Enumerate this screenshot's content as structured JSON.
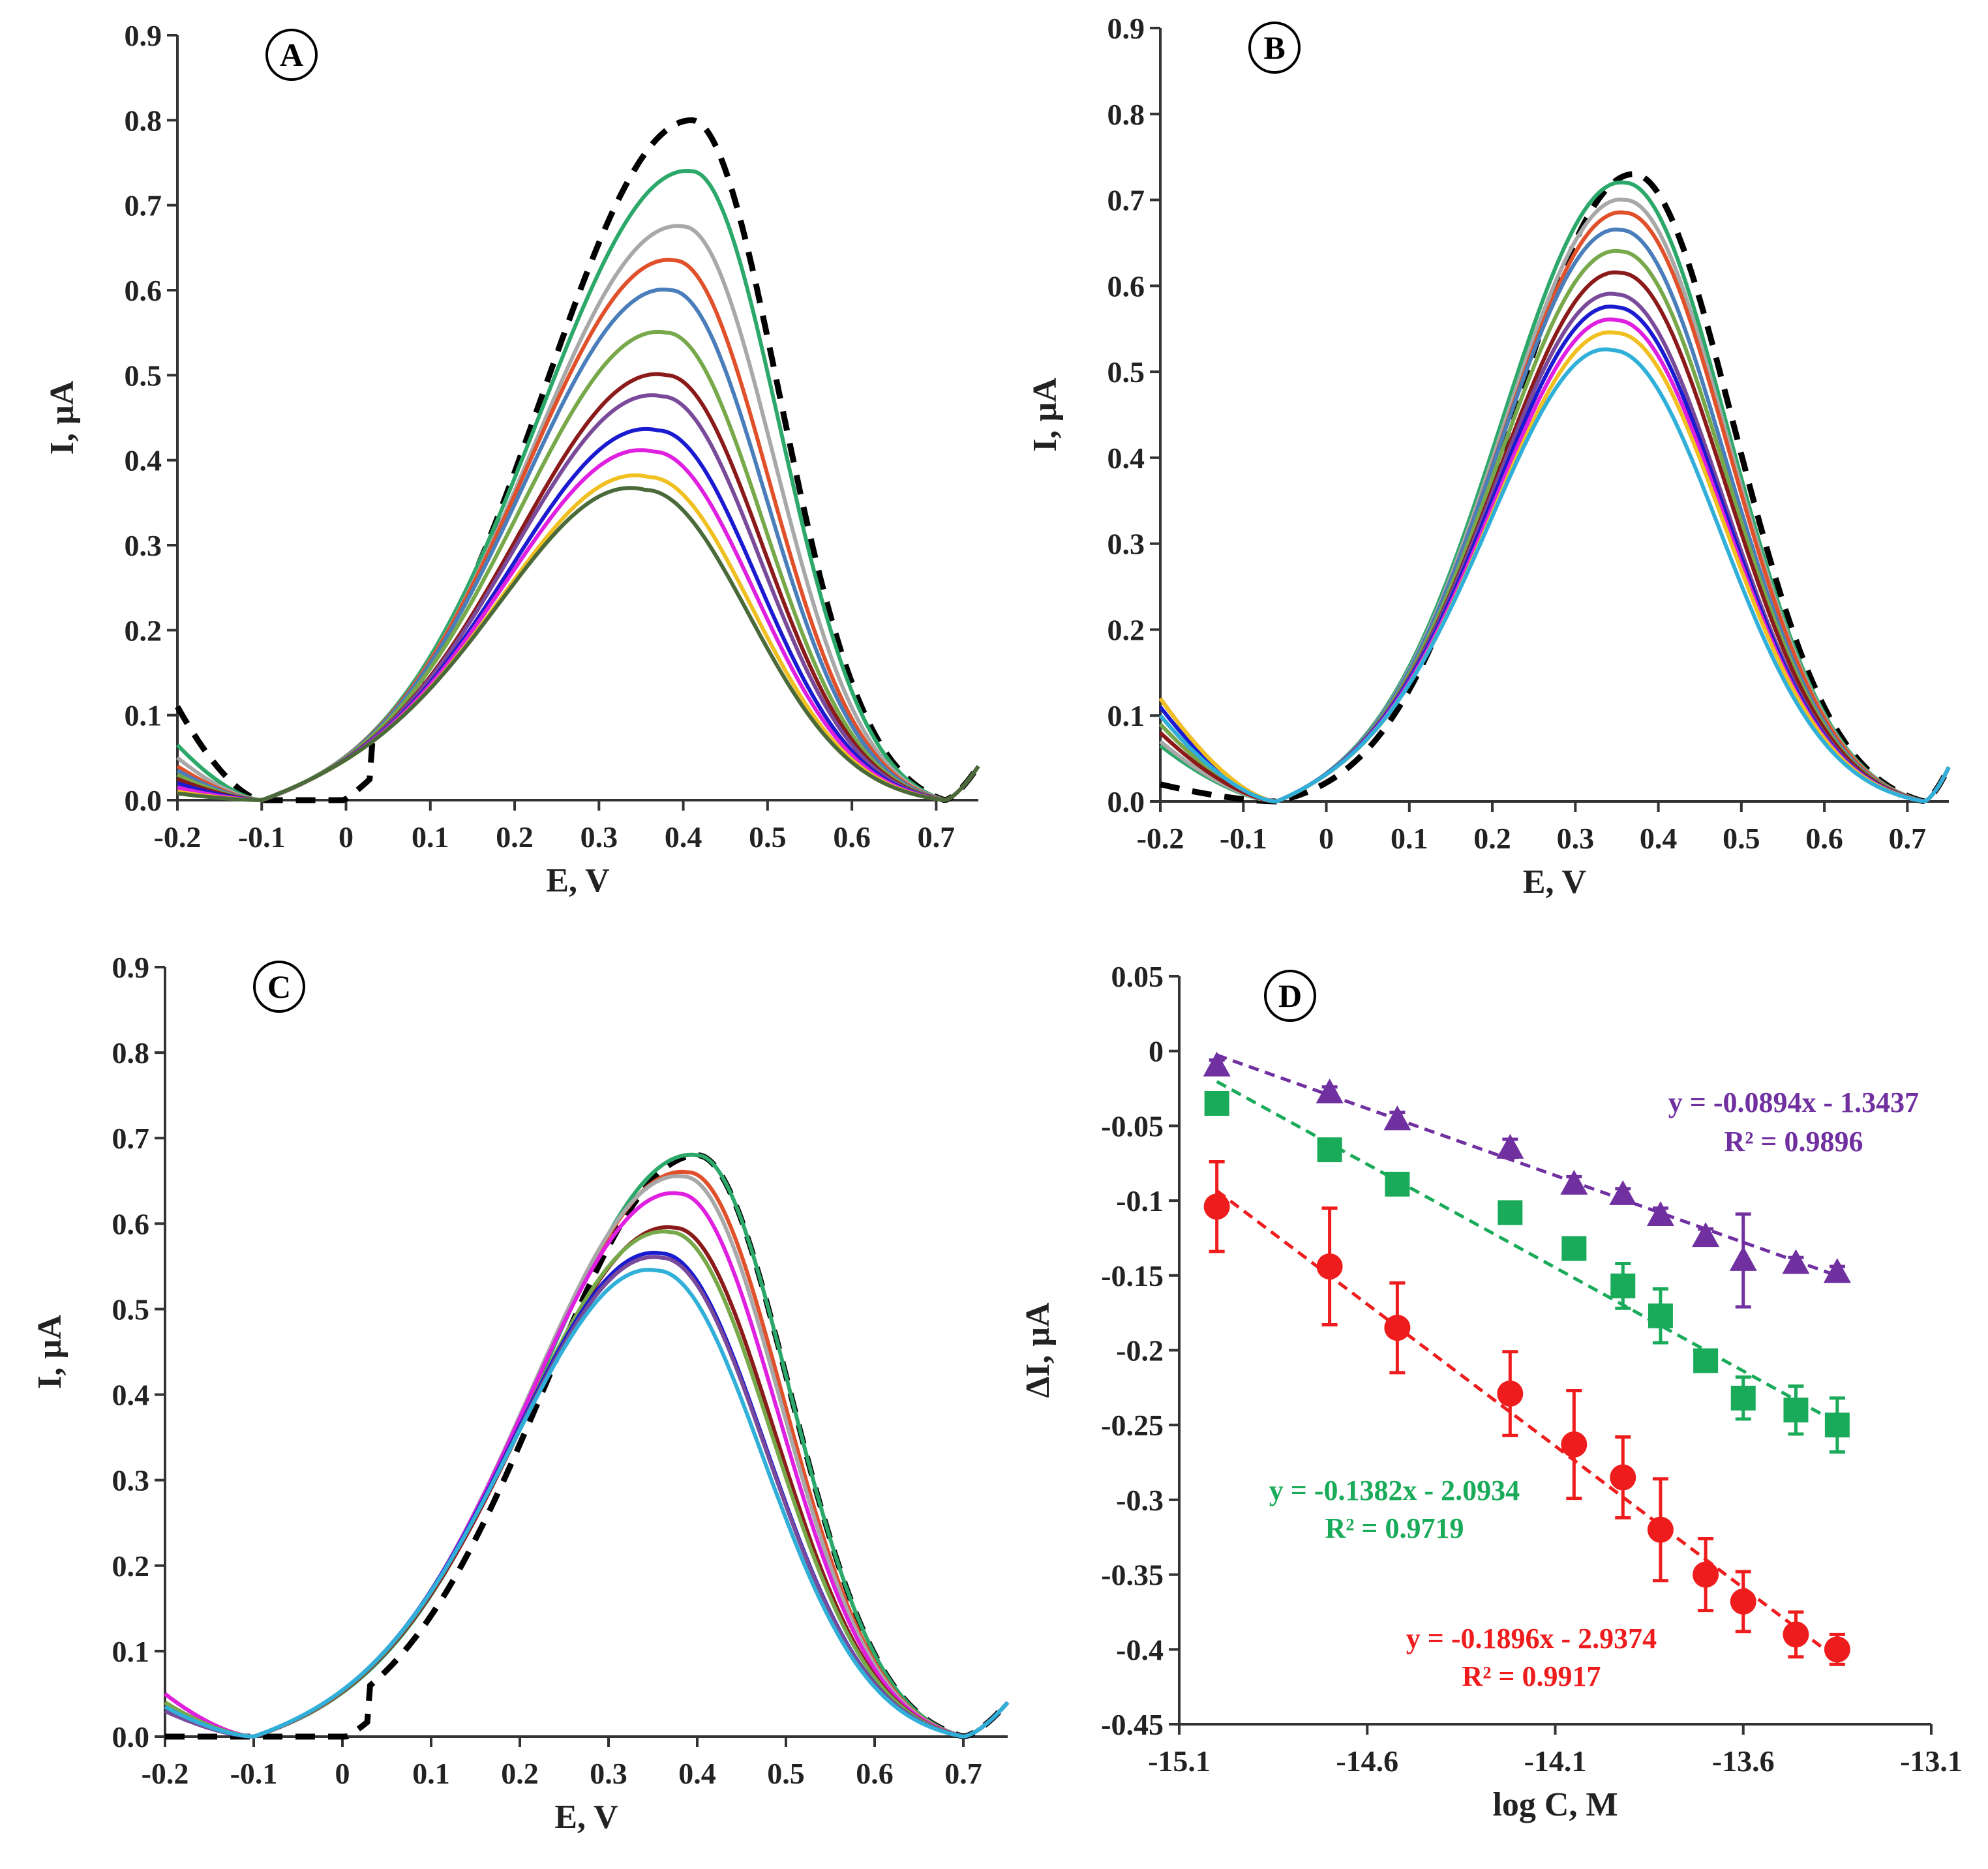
{
  "chart_data": [
    {
      "type": "line",
      "panel": "A",
      "xlabel": "E, V",
      "ylabel": "I, µA",
      "xlim": [
        -0.2,
        0.75
      ],
      "ylim": [
        0,
        0.9
      ],
      "xticks": [
        "-0.2",
        "-0.1",
        "0",
        "0.1",
        "0.2",
        "0.3",
        "0.4",
        "0.5",
        "0.6",
        "0.7"
      ],
      "yticks": [
        "0.0",
        "0.1",
        "0.2",
        "0.3",
        "0.4",
        "0.5",
        "0.6",
        "0.7",
        "0.8",
        "0.9"
      ],
      "zeros": [
        -0.1,
        0.71
      ],
      "series": [
        {
          "color": "#000000",
          "dashed": true,
          "peak_E": 0.41,
          "peak_I": 0.8,
          "left_I": 0.11
        },
        {
          "color": "#2ca86a",
          "peak_E": 0.41,
          "peak_I": 0.74,
          "left_I": 0.065
        },
        {
          "color": "#a8a8a8",
          "peak_E": 0.4,
          "peak_I": 0.675,
          "left_I": 0.05
        },
        {
          "color": "#e0502a",
          "peak_E": 0.39,
          "peak_I": 0.635,
          "left_I": 0.04
        },
        {
          "color": "#4a7ebb",
          "peak_E": 0.385,
          "peak_I": 0.6,
          "left_I": 0.035
        },
        {
          "color": "#77a84a",
          "peak_E": 0.38,
          "peak_I": 0.55,
          "left_I": 0.03
        },
        {
          "color": "#8b1a1a",
          "peak_E": 0.38,
          "peak_I": 0.5,
          "left_I": 0.025
        },
        {
          "color": "#7a4a9a",
          "peak_E": 0.375,
          "peak_I": 0.475,
          "left_I": 0.02
        },
        {
          "color": "#1a1ad0",
          "peak_E": 0.37,
          "peak_I": 0.435,
          "left_I": 0.02
        },
        {
          "color": "#e020e0",
          "peak_E": 0.365,
          "peak_I": 0.41,
          "left_I": 0.015
        },
        {
          "color": "#f0c020",
          "peak_E": 0.36,
          "peak_I": 0.38,
          "left_I": 0.01
        },
        {
          "color": "#4a6a3a",
          "peak_E": 0.355,
          "peak_I": 0.365,
          "left_I": 0.008
        }
      ]
    },
    {
      "type": "line",
      "panel": "B",
      "xlabel": "E, V",
      "ylabel": "I, µA",
      "xlim": [
        -0.2,
        0.75
      ],
      "ylim": [
        0,
        0.9
      ],
      "xticks": [
        "-0.2",
        "-0.1",
        "0",
        "0.1",
        "0.2",
        "0.3",
        "0.4",
        "0.5",
        "0.6",
        "0.7"
      ],
      "yticks": [
        "0.0",
        "0.1",
        "0.2",
        "0.3",
        "0.4",
        "0.5",
        "0.6",
        "0.7",
        "0.8",
        "0.9"
      ],
      "zeros": [
        -0.06,
        0.72
      ],
      "series": [
        {
          "color": "#000000",
          "dashed": true,
          "peak_E": 0.37,
          "peak_I": 0.73,
          "left_I": 0.02
        },
        {
          "color": "#2ca86a",
          "peak_E": 0.36,
          "peak_I": 0.72,
          "left_I": 0.065
        },
        {
          "color": "#a8a8a8",
          "peak_E": 0.36,
          "peak_I": 0.7,
          "left_I": 0.07
        },
        {
          "color": "#e0502a",
          "peak_E": 0.36,
          "peak_I": 0.685,
          "left_I": 0.08
        },
        {
          "color": "#4a7ebb",
          "peak_E": 0.355,
          "peak_I": 0.665,
          "left_I": 0.09
        },
        {
          "color": "#77a84a",
          "peak_E": 0.355,
          "peak_I": 0.64,
          "left_I": 0.09
        },
        {
          "color": "#8b1a1a",
          "peak_E": 0.355,
          "peak_I": 0.615,
          "left_I": 0.08
        },
        {
          "color": "#7a4a9a",
          "peak_E": 0.35,
          "peak_I": 0.59,
          "left_I": 0.1
        },
        {
          "color": "#1a1ad0",
          "peak_E": 0.35,
          "peak_I": 0.575,
          "left_I": 0.11
        },
        {
          "color": "#e020e0",
          "peak_E": 0.35,
          "peak_I": 0.56,
          "left_I": 0.12
        },
        {
          "color": "#f0c020",
          "peak_E": 0.35,
          "peak_I": 0.545,
          "left_I": 0.12
        },
        {
          "color": "#30b0d8",
          "peak_E": 0.345,
          "peak_I": 0.525,
          "left_I": 0.1
        }
      ]
    },
    {
      "type": "line",
      "panel": "C",
      "xlabel": "E, V",
      "ylabel": "I, µA",
      "xlim": [
        -0.2,
        0.75
      ],
      "ylim": [
        0,
        0.9
      ],
      "xticks": [
        "-0.2",
        "-0.1",
        "0",
        "0.1",
        "0.2",
        "0.3",
        "0.4",
        "0.5",
        "0.6",
        "0.7"
      ],
      "yticks": [
        "0.0",
        "0.1",
        "0.2",
        "0.3",
        "0.4",
        "0.5",
        "0.6",
        "0.7",
        "0.8",
        "0.9"
      ],
      "zeros": [
        -0.1,
        0.7
      ],
      "series": [
        {
          "color": "#000000",
          "dashed": true,
          "peak_E": 0.4,
          "peak_I": 0.68,
          "left_I": 0.0
        },
        {
          "color": "#2ca86a",
          "peak_E": 0.4,
          "peak_I": 0.68,
          "left_I": 0.04
        },
        {
          "color": "#e0502a",
          "peak_E": 0.39,
          "peak_I": 0.66,
          "left_I": 0.05
        },
        {
          "color": "#a8a8a8",
          "peak_E": 0.385,
          "peak_I": 0.655,
          "left_I": 0.04
        },
        {
          "color": "#e020e0",
          "peak_E": 0.38,
          "peak_I": 0.635,
          "left_I": 0.05
        },
        {
          "color": "#8b1a1a",
          "peak_E": 0.375,
          "peak_I": 0.595,
          "left_I": 0.04
        },
        {
          "color": "#77a84a",
          "peak_E": 0.37,
          "peak_I": 0.59,
          "left_I": 0.04
        },
        {
          "color": "#1a1ad0",
          "peak_E": 0.36,
          "peak_I": 0.565,
          "left_I": 0.03
        },
        {
          "color": "#7a4a9a",
          "peak_E": 0.36,
          "peak_I": 0.56,
          "left_I": 0.03
        },
        {
          "color": "#30b0d8",
          "peak_E": 0.355,
          "peak_I": 0.545,
          "left_I": 0.035
        }
      ]
    },
    {
      "type": "scatter",
      "panel": "D",
      "xlabel": "log C, M",
      "ylabel": "ΔI, µA",
      "xlim": [
        -15.1,
        -13.1
      ],
      "ylim": [
        -0.45,
        0.05
      ],
      "xticks": [
        "-15.1",
        "-14.6",
        "-14.1",
        "-13.6",
        "-13.1"
      ],
      "yticks": [
        "0.05",
        "0",
        "-0.05",
        "-0.1",
        "-0.15",
        "-0.2",
        "-0.25",
        "-0.3",
        "-0.35",
        "-0.4",
        "-0.45"
      ],
      "x": [
        -15.0,
        -14.7,
        -14.52,
        -14.22,
        -14.05,
        -13.92,
        -13.82,
        -13.7,
        -13.6,
        -13.46,
        -13.35
      ],
      "series": [
        {
          "name": "triangle",
          "marker": "triangle",
          "color": "#7030a0",
          "y": [
            -0.01,
            -0.028,
            -0.046,
            -0.065,
            -0.089,
            -0.096,
            -0.11,
            -0.124,
            -0.14,
            -0.142,
            -0.148
          ],
          "err": [
            0.004,
            0.004,
            0.005,
            0.006,
            0.005,
            0.004,
            0.005,
            0.005,
            0.031,
            0.004,
            0.004
          ],
          "fit": {
            "slope": -0.0894,
            "intercept": -1.3437
          },
          "equation": "y = -0.0894x - 1.3437",
          "r2": "R² = 0.9896"
        },
        {
          "name": "square",
          "marker": "square",
          "color": "#1aab5a",
          "y": [
            -0.035,
            -0.066,
            -0.089,
            -0.108,
            -0.132,
            -0.157,
            -0.177,
            -0.207,
            -0.232,
            -0.24,
            -0.25
          ],
          "err": [
            0.004,
            0.004,
            0.004,
            0.005,
            0.006,
            0.015,
            0.018,
            0.006,
            0.014,
            0.016,
            0.018
          ],
          "fit": {
            "slope": -0.1382,
            "intercept": -2.0934
          },
          "equation": "y = -0.1382x - 2.0934",
          "r2": "R² = 0.9719"
        },
        {
          "name": "circle",
          "marker": "circle",
          "color": "#ee1c1c",
          "y": [
            -0.104,
            -0.144,
            -0.185,
            -0.229,
            -0.263,
            -0.285,
            -0.32,
            -0.35,
            -0.368,
            -0.39,
            -0.4
          ],
          "err": [
            0.03,
            0.039,
            0.03,
            0.028,
            0.036,
            0.027,
            0.034,
            0.024,
            0.02,
            0.015,
            0.01
          ],
          "fit": {
            "slope": -0.1896,
            "intercept": -2.9374
          },
          "equation": "y = -0.1896x - 2.9374",
          "r2": "R² = 0.9917"
        }
      ]
    }
  ]
}
